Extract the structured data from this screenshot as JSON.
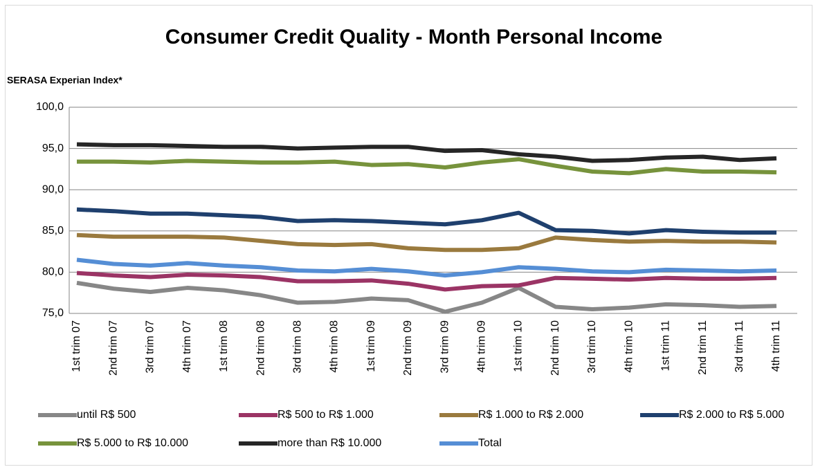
{
  "chart_data": {
    "type": "line",
    "title": "Consumer Credit Quality - Month Personal Income",
    "subtitle": "SERASA Experian Index*",
    "categories": [
      "1st trim 07",
      "2nd trim 07",
      "3rd trim 07",
      "4th trim 07",
      "1st trim 08",
      "2nd trim 08",
      "3rd trim 08",
      "4th trim 08",
      "1st trim 09",
      "2nd trim 09",
      "3rd trim 09",
      "4th trim 09",
      "1st trim 10",
      "2nd trim 10",
      "3rd trim 10",
      "4th trim 10",
      "1st trim 11",
      "2nd trim 11",
      "3rd trim 11",
      "4th trim 11"
    ],
    "series": [
      {
        "name": "until R$ 500",
        "color": "#878787",
        "values": [
          78.7,
          78.0,
          77.6,
          78.1,
          77.8,
          77.2,
          76.3,
          76.4,
          76.8,
          76.6,
          75.2,
          76.3,
          78.1,
          75.8,
          75.5,
          75.7,
          76.1,
          76.0,
          75.8,
          75.9
        ]
      },
      {
        "name": "R$ 500 to R$ 1.000",
        "color": "#9b3465",
        "values": [
          79.9,
          79.6,
          79.4,
          79.7,
          79.6,
          79.4,
          78.9,
          78.9,
          79.0,
          78.6,
          77.9,
          78.3,
          78.4,
          79.3,
          79.2,
          79.1,
          79.3,
          79.2,
          79.2,
          79.3
        ]
      },
      {
        "name": "R$ 1.000 to R$ 2.000",
        "color": "#9a7a3e",
        "values": [
          84.5,
          84.3,
          84.3,
          84.3,
          84.2,
          83.8,
          83.4,
          83.3,
          83.4,
          82.9,
          82.7,
          82.7,
          82.9,
          84.2,
          83.9,
          83.7,
          83.8,
          83.7,
          83.7,
          83.6
        ]
      },
      {
        "name": "R$ 2.000 to R$ 5.000",
        "color": "#1f406e",
        "values": [
          87.6,
          87.4,
          87.1,
          87.1,
          86.9,
          86.7,
          86.2,
          86.3,
          86.2,
          86.0,
          85.8,
          86.3,
          87.2,
          85.1,
          85.0,
          84.7,
          85.1,
          84.9,
          84.8,
          84.8
        ]
      },
      {
        "name": "R$ 5.000 to R$ 10.000",
        "color": "#77933c",
        "values": [
          93.4,
          93.4,
          93.3,
          93.5,
          93.4,
          93.3,
          93.3,
          93.4,
          93.0,
          93.1,
          92.7,
          93.3,
          93.7,
          92.9,
          92.2,
          92.0,
          92.5,
          92.2,
          92.2,
          92.1
        ]
      },
      {
        "name": "more than R$ 10.000",
        "color": "#262626",
        "values": [
          95.5,
          95.4,
          95.4,
          95.3,
          95.2,
          95.2,
          95.0,
          95.1,
          95.2,
          95.2,
          94.7,
          94.8,
          94.3,
          94.0,
          93.5,
          93.6,
          93.9,
          94.0,
          93.6,
          93.8
        ]
      },
      {
        "name": "Total",
        "color": "#558ed5",
        "values": [
          81.5,
          81.0,
          80.8,
          81.1,
          80.8,
          80.6,
          80.2,
          80.1,
          80.4,
          80.1,
          79.6,
          80.0,
          80.6,
          80.4,
          80.1,
          80.0,
          80.3,
          80.2,
          80.1,
          80.2
        ]
      }
    ],
    "ylim": [
      75,
      100
    ],
    "yticks": [
      {
        "value": 75,
        "label": "75,0"
      },
      {
        "value": 80,
        "label": "80,0"
      },
      {
        "value": 85,
        "label": "85,0"
      },
      {
        "value": 90,
        "label": "90,0"
      },
      {
        "value": 95,
        "label": "95,0"
      },
      {
        "value": 100,
        "label": "100,0"
      }
    ],
    "grid": true,
    "legend": "bottom"
  }
}
